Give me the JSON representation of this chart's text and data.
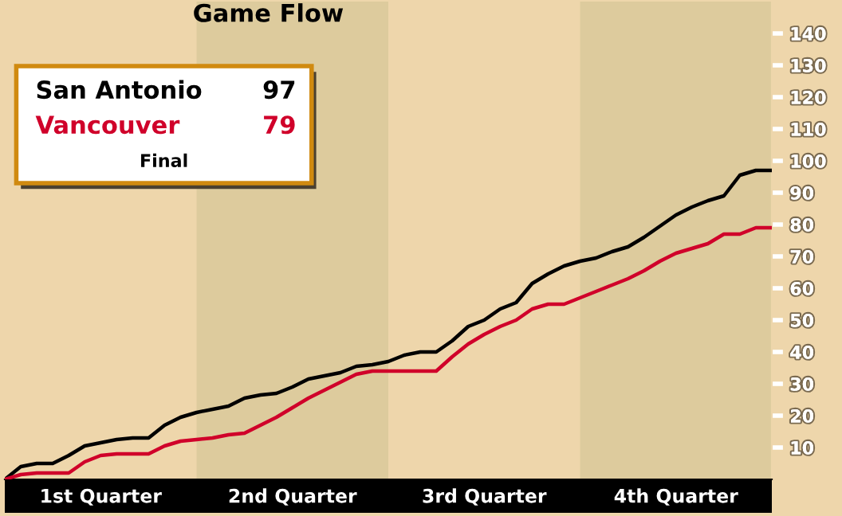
{
  "chart_data": {
    "type": "line",
    "title": "Game Flow",
    "categories": [
      null,
      null,
      null,
      null,
      null,
      null,
      null,
      null,
      null,
      null,
      null,
      null,
      null,
      null,
      null,
      null,
      null,
      null,
      null,
      null,
      null,
      null,
      null,
      null,
      null,
      null,
      null,
      null,
      null,
      null,
      null,
      null,
      null,
      null,
      null,
      null,
      null,
      null,
      null,
      null,
      null,
      null,
      null,
      null,
      null,
      null,
      null,
      null,
      null
    ],
    "series": [
      {
        "name": "San Antonio",
        "color": "#000000",
        "values": [
          0,
          4,
          5,
          5,
          7.5,
          10.5,
          11.5,
          12.5,
          13,
          13,
          17,
          19.5,
          21,
          22,
          23,
          25.5,
          26.5,
          27,
          29,
          31.5,
          32.5,
          33.5,
          35.5,
          36,
          37,
          39,
          40,
          40,
          43.5,
          48,
          50,
          53.5,
          55.5,
          61.5,
          64.5,
          67,
          68.5,
          69.5,
          71.5,
          73,
          76,
          79.5,
          83,
          85.5,
          87.5,
          89,
          95.5,
          97,
          97
        ]
      },
      {
        "name": "Vancouver",
        "color": "#d0002a",
        "values": [
          0,
          1.5,
          2,
          2,
          2,
          5.5,
          7.5,
          8,
          8,
          8,
          10.5,
          12,
          12.5,
          13,
          14,
          14.5,
          17,
          19.5,
          22.5,
          25.5,
          28,
          30.5,
          33,
          34,
          34,
          34,
          34,
          34,
          38.5,
          42.5,
          45.5,
          48,
          50,
          53.5,
          55,
          55,
          57,
          59,
          61,
          63,
          65.5,
          68.5,
          71,
          72.5,
          74,
          77,
          77,
          79,
          79
        ]
      }
    ],
    "annotations": [
      "97",
      "79",
      "Final",
      "1st Quarter",
      "2nd Quarter",
      "3rd Quarter",
      "4th Quarter"
    ],
    "legend": "top left",
    "marker": "none",
    "line_style": "solid",
    "grid": false,
    "ylim": [
      0,
      150
    ],
    "yticks": [
      10,
      20,
      30,
      40,
      50,
      60,
      70,
      80,
      90,
      100,
      110,
      120,
      130,
      140
    ]
  }
}
